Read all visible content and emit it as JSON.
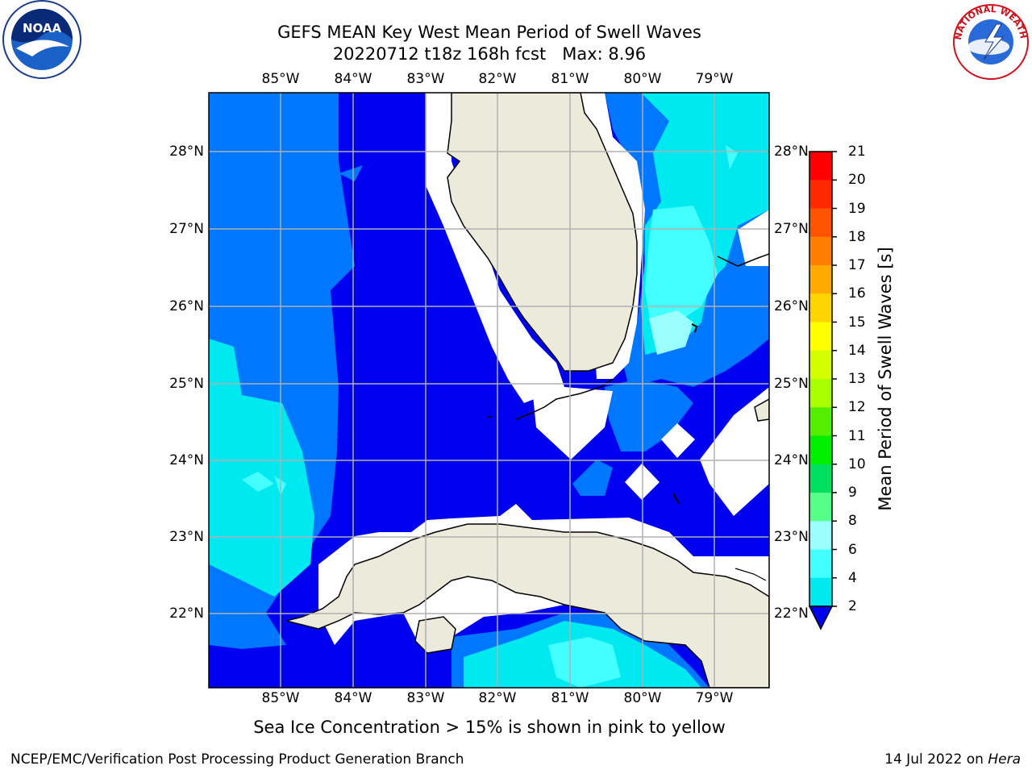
{
  "title": {
    "line1": "GEFS MEAN Key West Mean Period of Swell Waves",
    "line2": "20220712 t18z 168h fcst   Max: 8.96"
  },
  "logos": {
    "left": {
      "name": "noaa-logo",
      "text": "NOAA"
    },
    "right": {
      "name": "nws-logo",
      "text": "NATIONAL WEATHER SERVICE"
    }
  },
  "map": {
    "lon_ticks": [
      "85°W",
      "84°W",
      "83°W",
      "82°W",
      "81°W",
      "80°W",
      "79°W"
    ],
    "lat_ticks": [
      "28°N",
      "27°N",
      "26°N",
      "25°N",
      "24°N",
      "23°N",
      "22°N"
    ],
    "colors": {
      "land": "#ecebdb",
      "water_low": "#0000f0",
      "water_2_4": "#0077ff",
      "water_4_6": "#00e8f0",
      "water_6_8": "#44ffff",
      "water_8_9": "#99ffff",
      "grid": "#b0b0b0"
    }
  },
  "colorbar": {
    "title": "Mean Period of Swell Waves [s]",
    "levels": [
      "21",
      "20",
      "19",
      "18",
      "17",
      "16",
      "15",
      "14",
      "13",
      "12",
      "11",
      "10",
      "9",
      "8",
      "6",
      "4",
      "2"
    ],
    "colors": [
      "#ff0000",
      "#ff2a00",
      "#ff5500",
      "#ff8000",
      "#ffaa00",
      "#ffd400",
      "#ffff00",
      "#d4ff00",
      "#aaff00",
      "#55ee00",
      "#00ee00",
      "#00e060",
      "#55ff88",
      "#99ffff",
      "#44ffff",
      "#00e8f0",
      "#0077ff",
      "#0000f0"
    ]
  },
  "caption": "Sea Ice Concentration > 15% is shown in pink to yellow",
  "footer": {
    "left": "NCEP/EMC/Verification Post Processing Product Generation Branch",
    "right_prefix": "14 Jul 2022 on ",
    "right_host": "Hera"
  }
}
